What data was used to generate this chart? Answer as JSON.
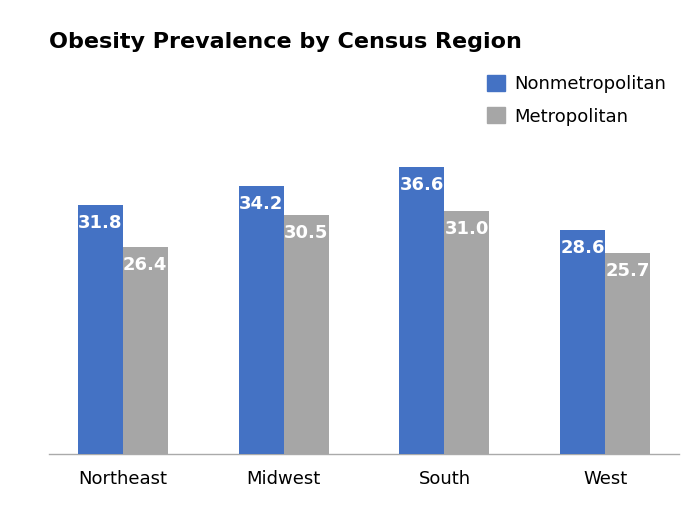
{
  "title": "Obesity Prevalence by Census Region",
  "categories": [
    "Northeast",
    "Midwest",
    "South",
    "West"
  ],
  "nonmetro_values": [
    31.8,
    34.2,
    36.6,
    28.6
  ],
  "metro_values": [
    26.4,
    30.5,
    31.0,
    25.7
  ],
  "nonmetro_color": "#4472C4",
  "metro_color": "#A6A6A6",
  "bar_label_color": "#FFFFFF",
  "title_fontsize": 16,
  "label_fontsize": 13,
  "tick_fontsize": 13,
  "legend_fontsize": 13,
  "bar_width": 0.28,
  "ylim": [
    0,
    50
  ],
  "legend_labels": [
    "Nonmetropolitan",
    "Metropolitan"
  ],
  "background_color": "#FFFFFF"
}
